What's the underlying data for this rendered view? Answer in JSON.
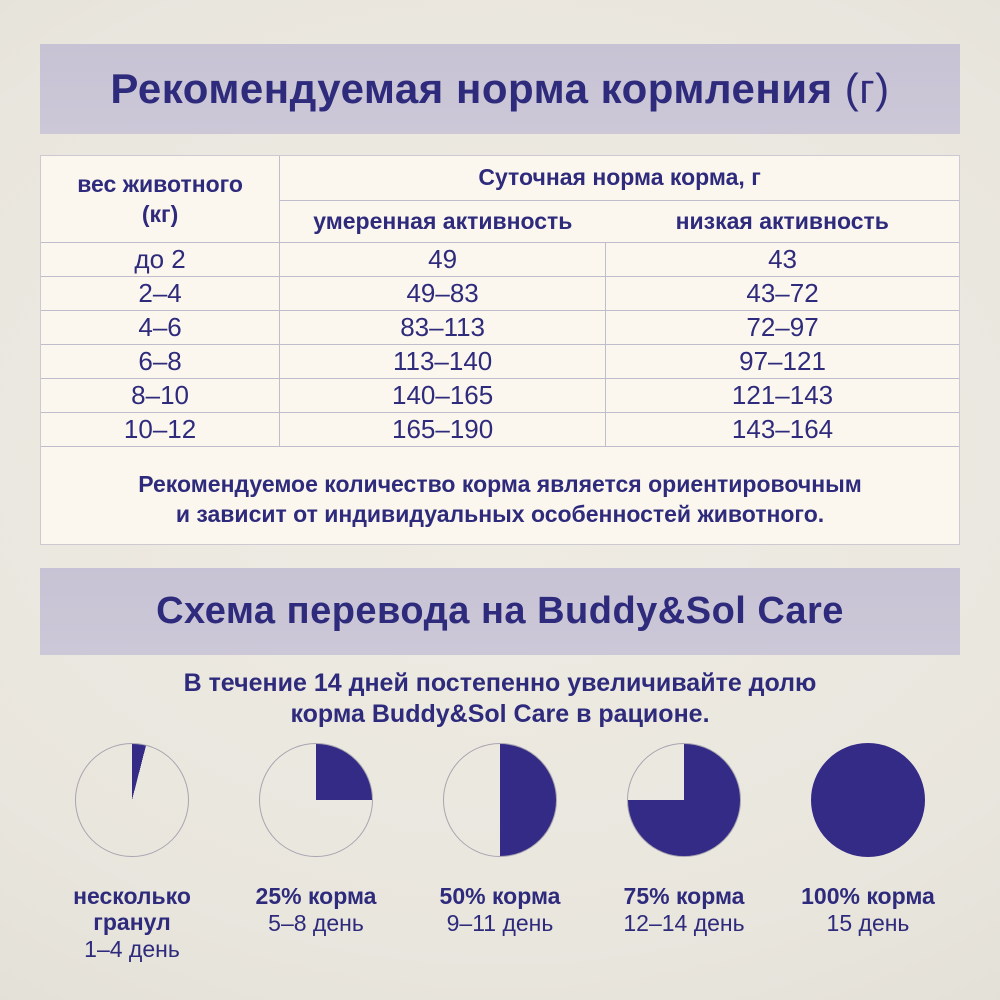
{
  "page": {
    "accent": "#2e2a7c",
    "pie_color": "#332b86",
    "band_bg": "#cac6d7",
    "panel_bg": "#fbf7ee"
  },
  "feeding": {
    "title": "Рекомендуемая норма кормления",
    "title_unit": "(г)",
    "table": {
      "weight_header": "вес животного\n(кг)",
      "group_header": "Суточная норма корма, г",
      "moderate_header": "умеренная активность",
      "low_header": "низкая активность",
      "rows": [
        {
          "weight": "до 2",
          "moderate": "49",
          "low": "43"
        },
        {
          "weight": "2–4",
          "moderate": "49–83",
          "low": "43–72"
        },
        {
          "weight": "4–6",
          "moderate": "83–113",
          "low": "72–97"
        },
        {
          "weight": "6–8",
          "moderate": "113–140",
          "low": "97–121"
        },
        {
          "weight": "8–10",
          "moderate": "140–165",
          "low": "121–143"
        },
        {
          "weight": "10–12",
          "moderate": "165–190",
          "low": "143–164"
        }
      ]
    },
    "note": "Рекомендуемое количество корма является ориентировочным\nи зависит от индивидуальных особенностей животного."
  },
  "transition": {
    "title": "Схема перевода на Buddy&Sol Care",
    "intro": "В течение 14 дней постепенно увеличивайте долю\nкорма Buddy&Sol Care в рационе.",
    "steps": [
      {
        "percent": 4,
        "title": "несколько\nгранул",
        "days": "1–4 день"
      },
      {
        "percent": 25,
        "title": "25% корма",
        "days": "5–8 день"
      },
      {
        "percent": 50,
        "title": "50% корма",
        "days": "9–11 день"
      },
      {
        "percent": 75,
        "title": "75% корма",
        "days": "12–14 день"
      },
      {
        "percent": 100,
        "title": "100% корма",
        "days": "15 день"
      }
    ]
  }
}
